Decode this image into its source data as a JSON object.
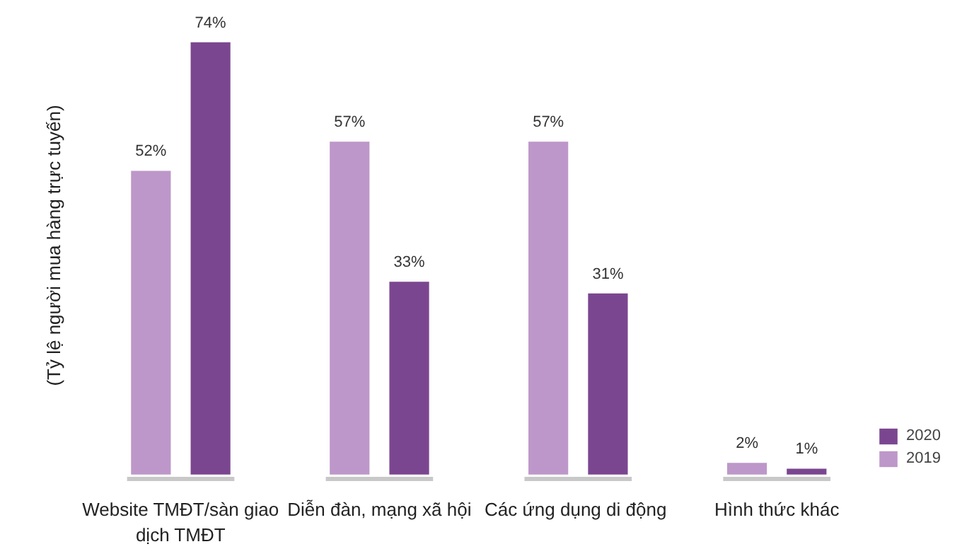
{
  "chart_data": {
    "type": "bar",
    "ylabel": "(Tỷ lệ người mua hàng trực tuyến)",
    "categories": [
      "Website TMĐT/sàn giao dịch TMĐT",
      "Diễn đàn, mạng xã hội",
      "Các  ứng dụng di động",
      "Hình thức khác"
    ],
    "series": [
      {
        "name": "2019",
        "color": "#bd97c9",
        "values": [
          52,
          57,
          57,
          2
        ],
        "value_labels": [
          "52%",
          "57%",
          "57%",
          "2%"
        ]
      },
      {
        "name": "2020",
        "color": "#7b4690",
        "values": [
          74,
          33,
          31,
          1
        ],
        "value_labels": [
          "74%",
          "33%",
          "31%",
          "1%"
        ]
      }
    ],
    "legend": "bottom right",
    "grid": false
  }
}
